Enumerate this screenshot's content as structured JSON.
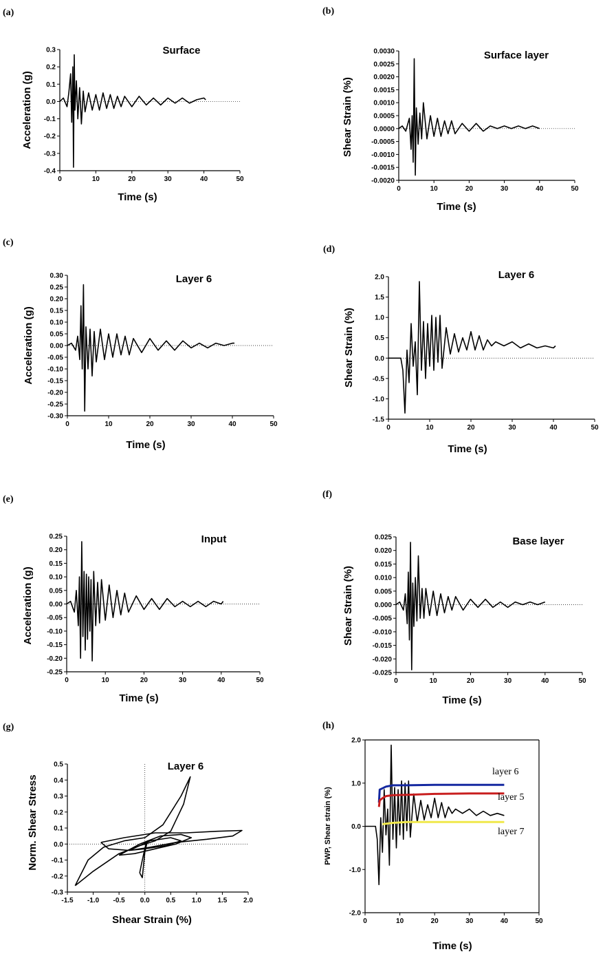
{
  "chart_data": [
    {
      "id": "a",
      "type": "line",
      "panel_label": "(a)",
      "title": "Surface",
      "xlabel": "Time (s)",
      "ylabel": "Acceleration (g)",
      "xlim": [
        0,
        50
      ],
      "ylim": [
        -0.4,
        0.3
      ],
      "xticks": [
        "0",
        "10",
        "20",
        "30",
        "40",
        "50"
      ],
      "yticks": [
        "-0.4",
        "-0.3",
        "-0.2",
        "-0.1",
        "0.0",
        "0.1",
        "0.2",
        "0.3"
      ],
      "zero_line": true,
      "series": [
        {
          "x": [
            0,
            1,
            2,
            2.5,
            3,
            3.3,
            3.6,
            3.8,
            4,
            4.2,
            4.6,
            5,
            5.5,
            6,
            6.5,
            7,
            8,
            9,
            10,
            11,
            12,
            13,
            14,
            15,
            16,
            17,
            18,
            20,
            22,
            24,
            26,
            28,
            30,
            32,
            34,
            36,
            38,
            40,
            40.5
          ],
          "y": [
            0,
            0.02,
            -0.03,
            0.05,
            0.16,
            -0.12,
            0.2,
            -0.38,
            0.27,
            -0.05,
            0.12,
            -0.1,
            0.08,
            -0.13,
            0.06,
            -0.06,
            0.05,
            -0.05,
            0.04,
            -0.05,
            0.05,
            -0.04,
            0.04,
            -0.04,
            0.03,
            -0.03,
            0.03,
            -0.03,
            0.03,
            -0.02,
            0.02,
            -0.02,
            0.02,
            -0.01,
            0.02,
            -0.01,
            0.01,
            0.02,
            0.01
          ]
        }
      ]
    },
    {
      "id": "b",
      "type": "line",
      "panel_label": "(b)",
      "title": "Surface layer",
      "xlabel": "Time (s)",
      "ylabel": "Shear Strain (%)",
      "xlim": [
        0,
        50
      ],
      "ylim": [
        -0.002,
        0.003
      ],
      "xticks": [
        "0",
        "10",
        "20",
        "30",
        "40",
        "50"
      ],
      "yticks": [
        "-0.0020",
        "-0.0015",
        "-0.0010",
        "-0.0005",
        "0.0000",
        "0.0005",
        "0.0010",
        "0.0015",
        "0.0020",
        "0.0025",
        "0.0030"
      ],
      "zero_line": true,
      "series": [
        {
          "x": [
            0,
            1,
            2,
            3,
            3.5,
            3.8,
            4.1,
            4.4,
            4.7,
            5,
            5.5,
            6,
            6.5,
            7,
            8,
            9,
            10,
            11,
            12,
            13,
            14,
            15,
            16,
            18,
            20,
            22,
            24,
            26,
            28,
            30,
            32,
            34,
            36,
            38,
            40
          ],
          "y": [
            0,
            0.0001,
            -0.0001,
            0.0004,
            -0.0008,
            0.0005,
            -0.0013,
            0.0027,
            -0.0018,
            0.0008,
            -0.0006,
            0.0006,
            -0.0004,
            0.001,
            -0.0004,
            0.0005,
            -0.0003,
            0.0004,
            -0.0003,
            0.0003,
            -0.0002,
            0.0003,
            -0.0002,
            0.0002,
            -0.0001,
            0.0002,
            -0.0001,
            0.0001,
            0,
            0.0001,
            0,
            0.0001,
            0,
            0.0001,
            0
          ]
        }
      ]
    },
    {
      "id": "c",
      "type": "line",
      "panel_label": "(c)",
      "title": "Layer 6",
      "xlabel": "Time (s)",
      "ylabel": "Acceleration (g)",
      "xlim": [
        0,
        50
      ],
      "ylim": [
        -0.3,
        0.3
      ],
      "xticks": [
        "0",
        "10",
        "20",
        "30",
        "40",
        "50"
      ],
      "yticks": [
        "-0.30",
        "-0.25",
        "-0.20",
        "-0.15",
        "-0.10",
        "-0.05",
        "0.00",
        "0.05",
        "0.10",
        "0.15",
        "0.20",
        "0.25",
        "0.30"
      ],
      "zero_line": true,
      "series": [
        {
          "x": [
            0,
            1,
            2,
            2.5,
            3,
            3.3,
            3.6,
            3.9,
            4.2,
            4.5,
            5,
            5.5,
            6,
            6.5,
            7,
            8,
            9,
            10,
            11,
            12,
            13,
            14,
            15,
            16,
            18,
            20,
            22,
            24,
            26,
            28,
            30,
            32,
            34,
            36,
            38,
            40,
            40.5
          ],
          "y": [
            0,
            0.01,
            -0.02,
            0.04,
            -0.06,
            0.17,
            -0.1,
            0.26,
            -0.28,
            0.08,
            -0.1,
            0.07,
            -0.13,
            0.06,
            -0.07,
            0.07,
            -0.06,
            0.05,
            -0.05,
            0.05,
            -0.04,
            0.04,
            -0.04,
            0.03,
            -0.03,
            0.03,
            -0.02,
            0.02,
            -0.02,
            0.02,
            -0.01,
            0.01,
            -0.01,
            0.01,
            0,
            0.01,
            0.01
          ]
        }
      ]
    },
    {
      "id": "d",
      "type": "line",
      "panel_label": "(d)",
      "title": "Layer 6",
      "xlabel": "Time (s)",
      "ylabel": "Shear Strain (%)",
      "xlim": [
        0,
        50
      ],
      "ylim": [
        -1.5,
        2.0
      ],
      "xticks": [
        "0",
        "10",
        "20",
        "30",
        "40",
        "50"
      ],
      "yticks": [
        "-1.5",
        "-1.0",
        "-0.5",
        "0.0",
        "0.5",
        "1.0",
        "1.5",
        "2.0"
      ],
      "zero_line": true,
      "series": [
        {
          "x": [
            0,
            2,
            3,
            3.5,
            4,
            4.5,
            5,
            5.5,
            6,
            6.5,
            7,
            7.5,
            8,
            8.5,
            9,
            9.5,
            10,
            10.5,
            11,
            11.5,
            12,
            12.5,
            13,
            14,
            15,
            16,
            17,
            18,
            19,
            20,
            21,
            22,
            23,
            24,
            25,
            26,
            28,
            30,
            32,
            34,
            36,
            38,
            40,
            40.5
          ],
          "y": [
            0,
            0,
            0,
            -0.3,
            -1.35,
            0.2,
            -0.6,
            0.85,
            -0.2,
            0.4,
            -0.9,
            1.88,
            -0.3,
            0.9,
            -0.5,
            0.85,
            -0.2,
            1.05,
            -0.3,
            1.0,
            -0.1,
            1.05,
            -0.25,
            0.75,
            0.1,
            0.6,
            0.15,
            0.5,
            0.2,
            0.65,
            0.2,
            0.55,
            0.2,
            0.45,
            0.3,
            0.4,
            0.3,
            0.4,
            0.25,
            0.35,
            0.25,
            0.3,
            0.25,
            0.3
          ]
        }
      ]
    },
    {
      "id": "e",
      "type": "line",
      "panel_label": "(e)",
      "title": "Input",
      "xlabel": "Time (s)",
      "ylabel": "Acceleration (g)",
      "xlim": [
        0,
        50
      ],
      "ylim": [
        -0.25,
        0.25
      ],
      "xticks": [
        "0",
        "10",
        "20",
        "30",
        "40",
        "50"
      ],
      "yticks": [
        "-0.25",
        "-0.20",
        "-0.15",
        "-0.10",
        "-0.05",
        "0.00",
        "0.05",
        "0.10",
        "0.15",
        "0.20",
        "0.25"
      ],
      "zero_line": true,
      "series": [
        {
          "x": [
            0,
            1,
            2,
            2.5,
            3,
            3.3,
            3.6,
            3.9,
            4.2,
            4.5,
            4.8,
            5.1,
            5.4,
            5.7,
            6,
            6.3,
            6.6,
            7,
            7.5,
            8,
            8.5,
            9,
            10,
            11,
            12,
            13,
            14,
            15,
            16,
            18,
            20,
            22,
            24,
            26,
            28,
            30,
            32,
            34,
            36,
            38,
            40,
            40.5
          ],
          "y": [
            0,
            0.01,
            -0.03,
            0.05,
            -0.08,
            0.1,
            -0.2,
            0.23,
            -0.12,
            0.12,
            -0.17,
            0.11,
            -0.13,
            0.1,
            -0.1,
            0.09,
            -0.21,
            0.12,
            -0.08,
            0.08,
            -0.07,
            0.09,
            -0.06,
            0.07,
            -0.05,
            0.05,
            -0.04,
            0.04,
            -0.03,
            0.03,
            -0.02,
            0.02,
            -0.02,
            0.02,
            -0.01,
            0.01,
            -0.01,
            0.01,
            -0.01,
            0.01,
            0,
            0.01
          ]
        }
      ]
    },
    {
      "id": "f",
      "type": "line",
      "panel_label": "(f)",
      "title": "Base layer",
      "xlabel": "Time (s)",
      "ylabel": "Shear Strain (%)",
      "xlim": [
        0,
        50
      ],
      "ylim": [
        -0.025,
        0.025
      ],
      "xticks": [
        "0",
        "10",
        "20",
        "30",
        "40",
        "50"
      ],
      "yticks": [
        "-0.025",
        "-0.020",
        "-0.015",
        "-0.010",
        "-0.005",
        "0.000",
        "0.005",
        "0.010",
        "0.015",
        "0.020",
        "0.025"
      ],
      "zero_line": true,
      "series": [
        {
          "x": [
            0,
            1,
            2,
            2.5,
            3,
            3.3,
            3.6,
            3.9,
            4.2,
            4.5,
            4.8,
            5.2,
            5.6,
            6,
            6.5,
            7,
            7.5,
            8,
            9,
            10,
            11,
            12,
            13,
            14,
            15,
            16,
            18,
            20,
            22,
            24,
            26,
            28,
            30,
            32,
            34,
            36,
            38,
            40
          ],
          "y": [
            0,
            0.001,
            -0.002,
            0.004,
            -0.007,
            0.012,
            -0.013,
            0.023,
            -0.024,
            0.008,
            -0.008,
            0.01,
            -0.006,
            0.018,
            -0.005,
            0.006,
            -0.005,
            0.006,
            -0.004,
            0.005,
            -0.004,
            0.004,
            -0.003,
            0.003,
            -0.002,
            0.003,
            -0.002,
            0.002,
            -0.001,
            0.002,
            -0.001,
            0.001,
            -0.001,
            0.001,
            0,
            0.001,
            0,
            0.001
          ]
        }
      ]
    },
    {
      "id": "g",
      "type": "line",
      "panel_label": "(g)",
      "title": "Layer 6",
      "xlabel": "Shear Strain (%)",
      "ylabel": "Norm. Shear Stress",
      "xlim": [
        -1.5,
        2.0
      ],
      "ylim": [
        -0.3,
        0.5
      ],
      "xticks": [
        "-1.5",
        "-1.0",
        "-0.5",
        "0.0",
        "0.5",
        "1.0",
        "1.5",
        "2.0"
      ],
      "yticks": [
        "-0.3",
        "-0.2",
        "-0.1",
        "0.0",
        "0.1",
        "0.2",
        "0.3",
        "0.4",
        "0.5"
      ],
      "zero_line": true,
      "zero_vline": true,
      "series": [
        {
          "x": [
            -1.35,
            -1.1,
            -0.8,
            -0.4,
            0,
            0.35,
            0.7,
            0.88,
            0.75,
            0.5,
            0.2,
            -0.1,
            -0.5,
            -1.0,
            -1.35
          ],
          "y": [
            -0.26,
            -0.1,
            -0.02,
            0.02,
            0.04,
            0.12,
            0.3,
            0.42,
            0.25,
            0.08,
            0.02,
            -0.01,
            -0.06,
            -0.17,
            -0.26
          ]
        },
        {
          "x": [
            -0.85,
            -0.4,
            0.2,
            0.8,
            1.4,
            1.88,
            1.7,
            1.2,
            0.6,
            0.1,
            -0.3,
            -0.7,
            -0.85
          ],
          "y": [
            0.01,
            0.04,
            0.07,
            0.07,
            0.08,
            0.085,
            0.05,
            0.03,
            0.01,
            -0.02,
            -0.04,
            -0.03,
            0.01
          ]
        },
        {
          "x": [
            -0.5,
            -0.1,
            0.3,
            0.7,
            0.9,
            0.6,
            0.2,
            -0.2,
            -0.5
          ],
          "y": [
            -0.07,
            0.0,
            0.05,
            0.06,
            0.04,
            0.0,
            -0.03,
            -0.06,
            -0.07
          ]
        },
        {
          "x": [
            -0.3,
            0.1,
            0.5,
            0.7,
            0.4,
            0.0,
            -0.3
          ],
          "y": [
            -0.04,
            0.02,
            0.04,
            0.02,
            -0.01,
            -0.03,
            -0.04
          ]
        },
        {
          "x": [
            -0.1,
            -0.05,
            0.0,
            0.05,
            0.02,
            -0.05,
            -0.1
          ],
          "y": [
            -0.18,
            -0.21,
            -0.05,
            0.02,
            0.0,
            -0.1,
            -0.18
          ]
        }
      ]
    },
    {
      "id": "h",
      "type": "line",
      "panel_label": "(h)",
      "title": "",
      "xlabel": "Time (s)",
      "ylabel": "PWP, Shear strain (%)",
      "xlim": [
        0,
        50
      ],
      "ylim": [
        -2.0,
        2.0
      ],
      "xticks": [
        "0",
        "10",
        "20",
        "30",
        "40",
        "50"
      ],
      "yticks": [
        "-2.0",
        "-1.0",
        "0.0",
        "1.0",
        "2.0"
      ],
      "zero_line": false,
      "boxed": true,
      "series": [
        {
          "name": "",
          "color": "#000000",
          "x": [
            0,
            2,
            3,
            3.5,
            4,
            4.5,
            5,
            5.5,
            6,
            6.5,
            7,
            7.5,
            8,
            8.5,
            9,
            9.5,
            10,
            10.5,
            11,
            11.5,
            12,
            12.5,
            13,
            14,
            15,
            16,
            17,
            18,
            19,
            20,
            21,
            22,
            23,
            24,
            25,
            26,
            28,
            30,
            32,
            34,
            36,
            38,
            40
          ],
          "y": [
            0,
            0,
            0,
            -0.3,
            -1.35,
            0.2,
            -0.6,
            0.85,
            -0.2,
            0.4,
            -0.9,
            1.88,
            -0.3,
            0.9,
            -0.5,
            0.85,
            -0.2,
            1.05,
            -0.3,
            1.0,
            -0.1,
            1.05,
            -0.25,
            0.75,
            0.1,
            0.6,
            0.15,
            0.5,
            0.2,
            0.65,
            0.2,
            0.55,
            0.2,
            0.45,
            0.3,
            0.4,
            0.3,
            0.4,
            0.25,
            0.35,
            0.25,
            0.3,
            0.25
          ]
        },
        {
          "name": "layer 6",
          "color": "#1428a0",
          "x": [
            4,
            4.2,
            5,
            6,
            8,
            12,
            20,
            30,
            40
          ],
          "y": [
            0.55,
            0.85,
            0.88,
            0.92,
            0.95,
            0.95,
            0.96,
            0.96,
            0.96
          ]
        },
        {
          "name": "layer 5",
          "color": "#c81e1e",
          "x": [
            4,
            4.2,
            5,
            6,
            8,
            12,
            20,
            30,
            40
          ],
          "y": [
            0.45,
            0.6,
            0.65,
            0.7,
            0.72,
            0.73,
            0.75,
            0.76,
            0.76
          ]
        },
        {
          "name": "layer 7",
          "color": "#f0e84a",
          "x": [
            5,
            8,
            12,
            20,
            30,
            40
          ],
          "y": [
            0.05,
            0.08,
            0.1,
            0.1,
            0.1,
            0.1
          ]
        }
      ],
      "legend": [
        "layer 6",
        "layer 5",
        "layer 7"
      ]
    }
  ]
}
